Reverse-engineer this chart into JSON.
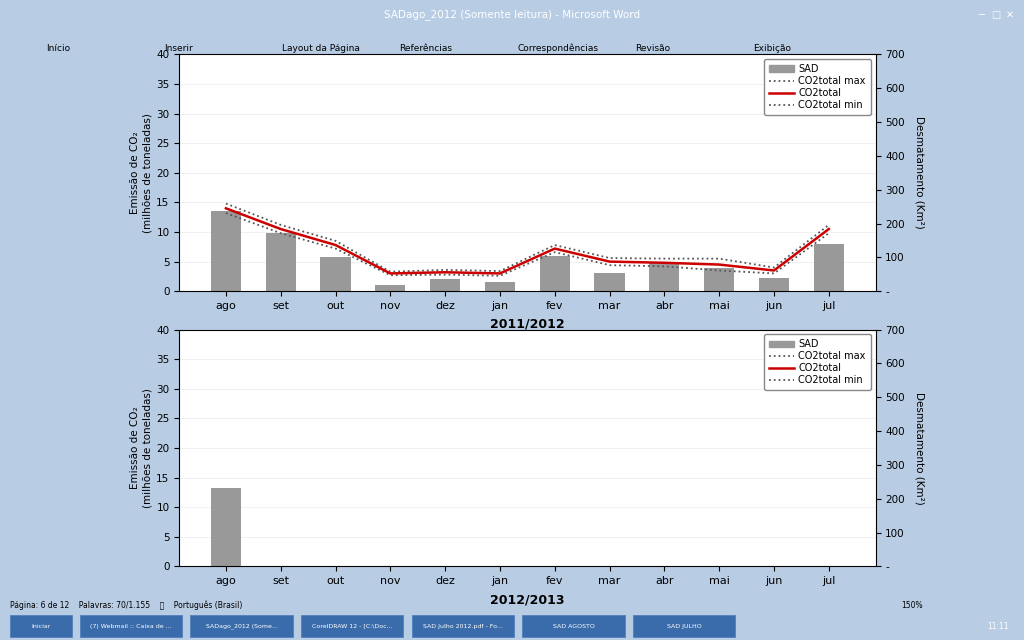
{
  "months": [
    "ago",
    "set",
    "out",
    "nov",
    "dez",
    "jan",
    "fev",
    "mar",
    "abr",
    "mai",
    "jun",
    "jul"
  ],
  "chart1": {
    "title": "2011/2012",
    "bars": [
      13.5,
      9.8,
      5.8,
      1.0,
      2.0,
      1.5,
      6.0,
      3.0,
      4.8,
      4.0,
      2.2,
      8.0
    ],
    "co2total": [
      14.0,
      10.5,
      7.8,
      3.0,
      3.2,
      3.0,
      7.2,
      5.0,
      4.8,
      4.5,
      3.5,
      10.5
    ],
    "co2max": [
      14.8,
      11.2,
      8.5,
      3.3,
      3.6,
      3.4,
      7.8,
      5.6,
      5.5,
      5.5,
      4.0,
      11.2
    ],
    "co2min": [
      13.2,
      9.8,
      7.2,
      2.7,
      2.8,
      2.6,
      6.6,
      4.4,
      4.2,
      3.5,
      3.0,
      9.8
    ]
  },
  "chart2": {
    "title": "2012/2013",
    "bars": [
      13.3,
      0,
      0,
      0,
      0,
      0,
      0,
      0,
      0,
      0,
      0,
      0
    ]
  },
  "ylim_left": [
    0,
    40
  ],
  "yticks_left": [
    0,
    5,
    10,
    15,
    20,
    25,
    30,
    35,
    40
  ],
  "yticks_right_labels": [
    "-",
    "100",
    "200",
    "300",
    "400",
    "500",
    "600",
    "700"
  ],
  "yticks_right_vals": [
    0,
    5.71,
    11.43,
    17.14,
    22.86,
    28.57,
    34.29,
    40.0
  ],
  "ylabel_left": "Emissão de CO₂\n(milhões de toneladas)",
  "ylabel_right": "Desmatamento (Km²)",
  "bar_color": "#999999",
  "co2total_color": "#cc0000",
  "co2dotted_color": "#555555",
  "legend_labels": [
    "SAD",
    "CO2total max",
    "CO2total",
    "CO2total min"
  ],
  "win_titlebar_color": "#1f4e96",
  "win_ribbon_color": "#dce6f1",
  "win_bg_color": "#b8cce4",
  "win_statusbar_color": "#d4e1f0",
  "win_taskbar_color": "#1f4e96",
  "doc_white": "#ffffff",
  "doc_border": "#c0c0c0",
  "chart_border": "#555555"
}
